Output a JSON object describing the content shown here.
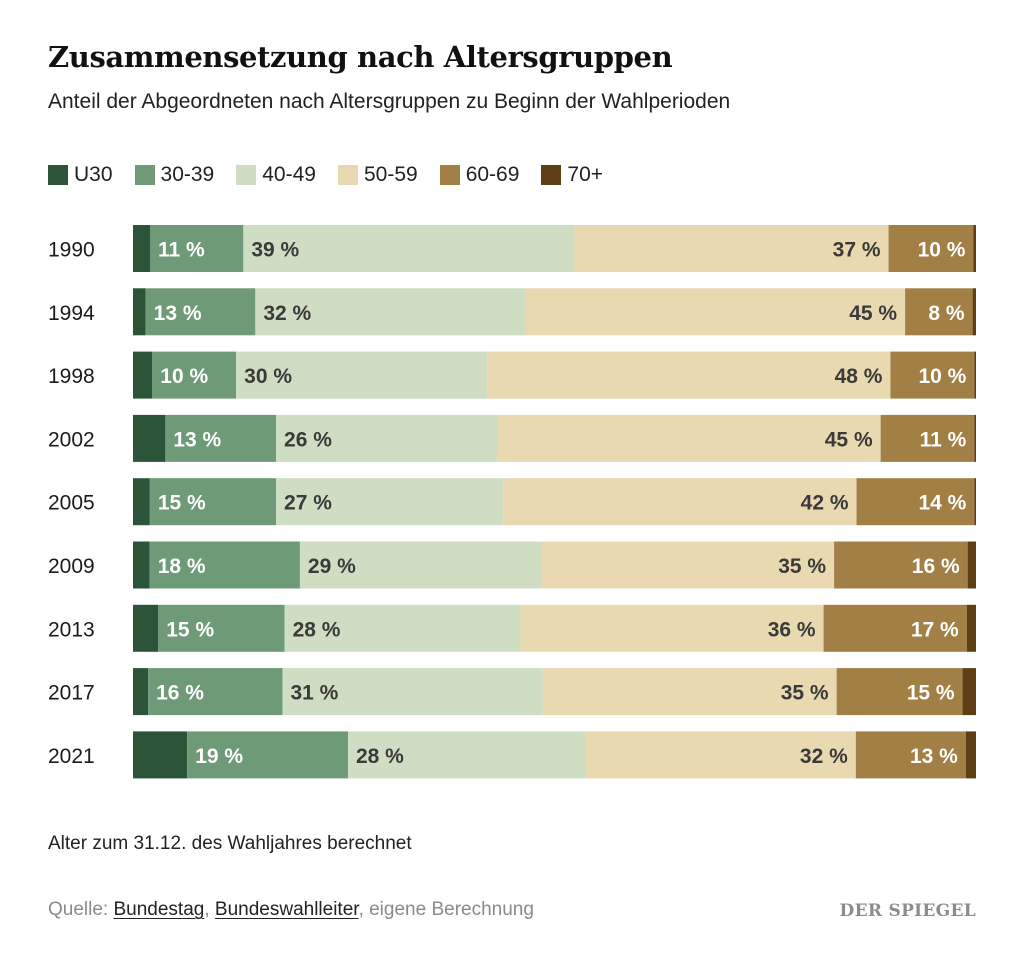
{
  "title": "Zusammensetzung nach Altersgruppen",
  "subtitle": "Anteil der Abgeordneten nach Altersgruppen zu Beginn der Wahlperioden",
  "legend": [
    {
      "label": "U30",
      "color": "#2b5438"
    },
    {
      "label": "30-39",
      "color": "#6e9a78"
    },
    {
      "label": "40-49",
      "color": "#cfddc2"
    },
    {
      "label": "50-59",
      "color": "#e9d9b0"
    },
    {
      "label": "60-69",
      "color": "#a27f45"
    },
    {
      "label": "70+",
      "color": "#5e3f14"
    }
  ],
  "chart_data": {
    "type": "bar",
    "orientation": "horizontal",
    "stacked": true,
    "percent_suffix": " %",
    "categories": [
      "1990",
      "1994",
      "1998",
      "2002",
      "2005",
      "2009",
      "2013",
      "2017",
      "2021"
    ],
    "series": [
      {
        "name": "U30",
        "values": [
          2,
          1.5,
          2.3,
          3.8,
          2,
          2,
          3,
          1.8,
          6.4
        ],
        "labels": [
          "",
          "",
          "",
          "",
          "",
          "",
          "",
          "",
          ""
        ]
      },
      {
        "name": "30-39",
        "values": [
          11,
          13,
          10,
          13,
          15,
          18,
          15,
          16,
          19
        ],
        "labels": [
          "11 %",
          "13 %",
          "10 %",
          "13 %",
          "15 %",
          "18 %",
          "15 %",
          "16 %",
          "19 %"
        ]
      },
      {
        "name": "40-49",
        "values": [
          39,
          32,
          30,
          26,
          27,
          29,
          28,
          31,
          28
        ],
        "labels": [
          "39 %",
          "32 %",
          "30 %",
          "26 %",
          "27 %",
          "29 %",
          "28 %",
          "31 %",
          "28 %"
        ]
      },
      {
        "name": "50-59",
        "values": [
          37,
          45,
          48,
          45,
          42,
          35,
          36,
          35,
          32
        ],
        "labels": [
          "37 %",
          "45 %",
          "48 %",
          "45 %",
          "42 %",
          "35 %",
          "36 %",
          "35 %",
          "32 %"
        ]
      },
      {
        "name": "60-69",
        "values": [
          10,
          8,
          10,
          11,
          14,
          16,
          17,
          15,
          13
        ],
        "labels": [
          "10 %",
          "8 %",
          "10 %",
          "11 %",
          "14 %",
          "16 %",
          "17 %",
          "15 %",
          "13 %"
        ]
      },
      {
        "name": "70+",
        "values": [
          0.3,
          0.4,
          0.2,
          0.2,
          0.2,
          1,
          1.1,
          1.6,
          1.2
        ],
        "labels": [
          "",
          "",
          "",
          "",
          "",
          "",
          "",
          "",
          ""
        ]
      }
    ],
    "xlim": [
      0,
      100
    ],
    "grid": false,
    "legend_position": "top-left"
  },
  "note": "Alter zum 31.12. des Wahljahres berechnet",
  "source": {
    "prefix": "Quelle: ",
    "link1": "Bundestag",
    "sep": ", ",
    "link2": "Bundeswahlleiter",
    "suffix": ", eigene Berechnung"
  },
  "brand": "DER SPIEGEL"
}
